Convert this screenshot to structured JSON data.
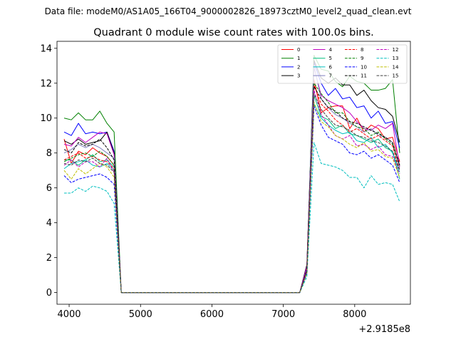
{
  "figure": {
    "suptitle": "Data file: modeM0/AS1A05_166T04_9000002826_18973cztM0_level2_quad_clean.evt"
  },
  "chart_data": {
    "type": "line",
    "title": "Quadrant 0 module wise count rates with 100.0s bins.",
    "xlabel": "",
    "ylabel": "",
    "x_offset_label": "+2.9185e8",
    "x_unit_note": "x values are offsets from 2.9185e8 as printed on the axis",
    "xlim": [
      3830,
      8780
    ],
    "ylim": [
      -0.67,
      14.4
    ],
    "xticks": [
      4000,
      5000,
      6000,
      7000,
      8000
    ],
    "xtick_labels": [
      "4000",
      "5000",
      "6000",
      "7000",
      "8000"
    ],
    "yticks": [
      0,
      2,
      4,
      6,
      8,
      10,
      12,
      14
    ],
    "ytick_labels": [
      "0",
      "2",
      "4",
      "6",
      "8",
      "10",
      "12",
      "14"
    ],
    "grid": false,
    "legend_position": "top-right",
    "legend_columns": 4,
    "x_segment_1": [
      3930,
      4030,
      4130,
      4230,
      4330,
      4430,
      4530,
      4630,
      4730
    ],
    "x_segment_2": [
      7230,
      7330,
      7430,
      7530,
      7630,
      7730,
      7830,
      7930,
      8030,
      8130,
      8230,
      8330,
      8430,
      8530,
      8630
    ],
    "zero_x": [
      4730,
      4830,
      4930,
      5030,
      5130,
      5230,
      5330,
      5430,
      5530,
      5630,
      5730,
      5830,
      5930,
      6030,
      6130,
      6230,
      6330,
      6430,
      6530,
      6630,
      6730,
      6830,
      6930,
      7030,
      7130,
      7230
    ],
    "series": [
      {
        "name": "0",
        "color": "#ff0000",
        "dash": "solid",
        "seg1": [
          8.8,
          7.4,
          8.1,
          7.9,
          8.3,
          8.0,
          7.8,
          7.3,
          0.0
        ],
        "seg2": [
          0.0,
          1.4,
          12.2,
          10.3,
          10.6,
          10.7,
          10.7,
          9.4,
          10.0,
          9.2,
          9.6,
          9.4,
          8.8,
          8.9,
          7.5
        ]
      },
      {
        "name": "1",
        "color": "#008000",
        "dash": "solid",
        "seg1": [
          10.0,
          9.9,
          10.3,
          9.9,
          9.9,
          10.4,
          9.7,
          9.2,
          0.0
        ],
        "seg2": [
          0.0,
          1.5,
          13.6,
          12.8,
          12.7,
          12.1,
          11.8,
          12.4,
          12.1,
          12.0,
          11.6,
          11.6,
          11.7,
          12.2,
          8.0
        ]
      },
      {
        "name": "2",
        "color": "#0000ff",
        "dash": "solid",
        "seg1": [
          9.2,
          9.0,
          9.7,
          9.1,
          9.2,
          9.1,
          9.2,
          8.1,
          0.0
        ],
        "seg2": [
          0.0,
          1.4,
          13.2,
          12.0,
          11.3,
          11.7,
          11.1,
          11.2,
          10.6,
          10.7,
          10.0,
          10.4,
          9.7,
          9.8,
          8.3
        ]
      },
      {
        "name": "3",
        "color": "#000000",
        "dash": "solid",
        "seg1": [
          8.7,
          8.5,
          8.8,
          8.5,
          8.6,
          8.7,
          9.2,
          8.0,
          0.0
        ],
        "seg2": [
          0.0,
          1.6,
          13.3,
          12.3,
          12.0,
          12.3,
          11.9,
          11.9,
          11.3,
          11.6,
          11.0,
          10.6,
          10.5,
          10.1,
          8.6
        ]
      },
      {
        "name": "4",
        "color": "#bf00bf",
        "dash": "solid",
        "seg1": [
          8.5,
          8.4,
          8.9,
          8.6,
          8.9,
          9.2,
          9.1,
          7.9,
          0.0
        ],
        "seg2": [
          0.0,
          1.5,
          12.9,
          11.3,
          11.0,
          10.8,
          10.6,
          10.3,
          9.8,
          9.4,
          9.3,
          9.6,
          9.4,
          9.7,
          7.2
        ]
      },
      {
        "name": "5",
        "color": "#00bf7f",
        "dash": "solid",
        "seg1": [
          7.6,
          7.6,
          7.3,
          7.6,
          7.9,
          7.5,
          7.6,
          7.2,
          0.0
        ],
        "seg2": [
          0.0,
          1.2,
          11.3,
          10.1,
          9.9,
          9.4,
          9.6,
          9.1,
          9.0,
          8.8,
          8.6,
          8.8,
          8.3,
          8.1,
          6.5
        ]
      },
      {
        "name": "6",
        "color": "#00bfbf",
        "dash": "solid",
        "seg1": [
          7.1,
          7.4,
          7.5,
          7.6,
          7.3,
          7.2,
          7.4,
          7.0,
          0.0
        ],
        "seg2": [
          0.0,
          1.1,
          10.8,
          10.0,
          9.6,
          9.3,
          9.1,
          9.2,
          8.7,
          8.6,
          8.9,
          8.3,
          8.5,
          8.0,
          6.9
        ]
      },
      {
        "name": "7",
        "color": "#7f7fbf",
        "dash": "solid",
        "seg1": [
          8.0,
          8.2,
          8.5,
          8.3,
          8.5,
          8.3,
          8.0,
          7.7,
          0.0
        ],
        "seg2": [
          0.0,
          1.3,
          13.0,
          11.1,
          10.6,
          10.2,
          10.0,
          9.7,
          9.5,
          9.2,
          9.4,
          9.0,
          8.9,
          8.6,
          7.1
        ]
      },
      {
        "name": "8",
        "color": "#ff0000",
        "dash": "dashed",
        "seg1": [
          7.6,
          7.8,
          8.0,
          7.7,
          7.8,
          7.6,
          7.5,
          7.1,
          0.0
        ],
        "seg2": [
          0.0,
          1.2,
          11.9,
          10.8,
          10.4,
          9.9,
          9.6,
          9.2,
          9.4,
          9.1,
          8.8,
          9.0,
          8.7,
          8.4,
          7.0
        ]
      },
      {
        "name": "9",
        "color": "#008000",
        "dash": "dashed",
        "seg1": [
          7.5,
          7.7,
          7.9,
          8.0,
          7.8,
          8.1,
          7.8,
          7.3,
          0.0
        ],
        "seg2": [
          0.0,
          1.3,
          12.0,
          11.4,
          10.9,
          10.3,
          10.3,
          9.8,
          9.5,
          9.4,
          9.0,
          9.2,
          8.8,
          8.5,
          7.3
        ]
      },
      {
        "name": "10",
        "color": "#0000ff",
        "dash": "dashed",
        "seg1": [
          6.7,
          6.3,
          6.5,
          6.6,
          6.7,
          6.8,
          6.6,
          6.2,
          0.0
        ],
        "seg2": [
          0.0,
          1.1,
          10.7,
          9.6,
          8.9,
          8.7,
          8.5,
          8.0,
          7.9,
          8.1,
          7.7,
          7.9,
          7.6,
          7.3,
          6.3
        ]
      },
      {
        "name": "11",
        "color": "#000000",
        "dash": "dashed",
        "seg1": [
          8.2,
          8.0,
          8.6,
          8.4,
          8.5,
          8.8,
          8.3,
          7.6,
          0.0
        ],
        "seg2": [
          0.0,
          1.3,
          11.8,
          11.1,
          10.6,
          10.4,
          10.0,
          9.8,
          9.7,
          9.5,
          9.3,
          9.1,
          8.9,
          8.6,
          7.3
        ]
      },
      {
        "name": "12",
        "color": "#bf00bf",
        "dash": "dashed",
        "seg1": [
          7.3,
          7.6,
          7.2,
          7.5,
          7.5,
          7.2,
          7.7,
          6.9,
          0.0
        ],
        "seg2": [
          0.0,
          1.2,
          11.6,
          10.2,
          9.6,
          9.0,
          8.8,
          9.0,
          8.4,
          8.5,
          8.2,
          8.4,
          7.9,
          7.8,
          6.8
        ]
      },
      {
        "name": "13",
        "color": "#00bfbf",
        "dash": "dashed",
        "seg1": [
          5.7,
          5.7,
          6.0,
          5.8,
          6.1,
          6.0,
          5.8,
          5.1,
          0.0
        ],
        "seg2": [
          0.0,
          0.9,
          8.6,
          7.4,
          7.3,
          7.2,
          7.0,
          6.6,
          6.6,
          6.0,
          6.7,
          6.2,
          6.3,
          6.2,
          5.2
        ]
      },
      {
        "name": "14",
        "color": "#bfbf00",
        "dash": "dashed",
        "seg1": [
          7.0,
          6.5,
          7.1,
          6.8,
          7.1,
          7.4,
          7.2,
          6.6,
          0.0
        ],
        "seg2": [
          0.0,
          1.1,
          10.9,
          9.8,
          9.5,
          9.0,
          8.8,
          8.5,
          8.3,
          8.6,
          8.1,
          8.2,
          7.8,
          7.7,
          6.6
        ]
      },
      {
        "name": "15",
        "color": "#3f3f3f",
        "dash": "dashed",
        "seg1": [
          7.4,
          7.3,
          7.6,
          7.5,
          7.7,
          7.4,
          7.3,
          6.9,
          0.0
        ],
        "seg2": [
          0.0,
          1.2,
          11.4,
          10.5,
          10.0,
          9.6,
          9.5,
          9.3,
          9.0,
          8.9,
          8.7,
          8.6,
          8.4,
          8.1,
          7.0
        ]
      }
    ]
  }
}
